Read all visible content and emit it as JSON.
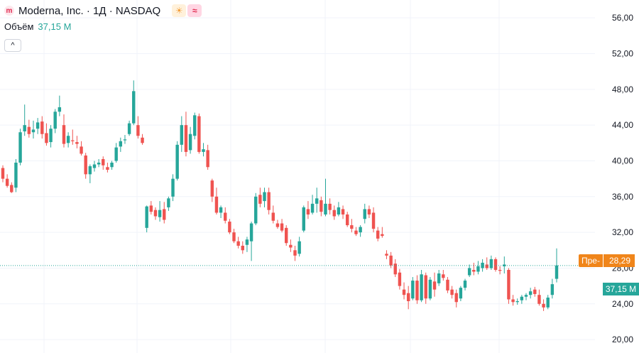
{
  "header": {
    "title": "Moderna, Inc. · 1Д · NASDAQ",
    "logo_letter": "m",
    "badges": [
      {
        "icon": "sun-icon",
        "glyph": "☀"
      },
      {
        "icon": "wave-icon",
        "glyph": "≈"
      }
    ]
  },
  "volume": {
    "label": "Объём",
    "value": "37,15 M"
  },
  "collapse_glyph": "^",
  "price_tag": {
    "prefix": "Пре-",
    "value": "28,29"
  },
  "volume_tag": {
    "value": "37,15 M"
  },
  "colors": {
    "up": "#26a69a",
    "down": "#ef5350",
    "pre": "#f0851a",
    "grid": "#f0f3fa"
  },
  "chart_data": {
    "type": "candlestick",
    "y_axis": {
      "min": 18.5,
      "max": 58,
      "ticks": [
        20,
        24,
        28,
        32,
        36,
        40,
        44,
        48,
        52,
        56
      ],
      "tick_labels": [
        "20,00",
        "24,00",
        "28,00",
        "32,00",
        "36,00",
        "40,00",
        "44,00",
        "48,00",
        "52,00",
        "56,00"
      ]
    },
    "last_price": 28.29,
    "candles": [
      [
        39.2,
        39.5,
        37.6,
        38.0
      ],
      [
        38.0,
        38.5,
        37.0,
        37.2
      ],
      [
        37.3,
        37.6,
        36.4,
        36.5
      ],
      [
        37.0,
        40.2,
        36.5,
        39.8
      ],
      [
        39.8,
        43.6,
        39.5,
        43.2
      ],
      [
        43.3,
        46.3,
        42.8,
        44.0
      ],
      [
        43.8,
        44.6,
        42.6,
        43.0
      ],
      [
        43.2,
        44.5,
        42.5,
        43.5
      ],
      [
        43.6,
        44.8,
        43.0,
        44.3
      ],
      [
        44.4,
        45.0,
        42.5,
        43.0
      ],
      [
        43.1,
        44.2,
        41.7,
        42.0
      ],
      [
        42.1,
        44.0,
        41.5,
        43.6
      ],
      [
        43.6,
        45.8,
        43.1,
        45.5
      ],
      [
        45.5,
        47.3,
        45.0,
        46.0
      ],
      [
        44.0,
        45.2,
        41.5,
        41.9
      ],
      [
        42.0,
        43.2,
        41.5,
        42.8
      ],
      [
        42.3,
        43.5,
        41.8,
        42.2
      ],
      [
        42.1,
        42.8,
        41.4,
        41.9
      ],
      [
        41.6,
        42.2,
        40.6,
        40.8
      ],
      [
        40.6,
        40.9,
        38.0,
        38.5
      ],
      [
        38.5,
        39.6,
        37.5,
        39.4
      ],
      [
        39.2,
        40.0,
        38.8,
        39.6
      ],
      [
        39.6,
        40.2,
        39.3,
        39.8
      ],
      [
        40.2,
        40.5,
        39.0,
        39.5
      ],
      [
        39.3,
        39.8,
        38.7,
        39.0
      ],
      [
        39.3,
        40.0,
        39.0,
        39.8
      ],
      [
        40.0,
        42.0,
        39.8,
        41.5
      ],
      [
        41.6,
        42.6,
        41.0,
        42.2
      ],
      [
        42.3,
        42.9,
        41.9,
        42.4
      ],
      [
        43.0,
        44.5,
        42.8,
        44.2
      ],
      [
        44.2,
        49.0,
        44.0,
        47.8
      ],
      [
        44.0,
        45.0,
        42.5,
        42.8
      ],
      [
        42.6,
        43.0,
        41.8,
        42.0
      ],
      [
        32.5,
        35.0,
        32.0,
        34.9
      ],
      [
        35.0,
        35.5,
        34.0,
        34.3
      ],
      [
        34.5,
        34.8,
        33.4,
        33.8
      ],
      [
        33.7,
        35.5,
        33.2,
        34.5
      ],
      [
        34.6,
        35.4,
        33.0,
        33.4
      ],
      [
        34.8,
        36.0,
        34.4,
        35.8
      ],
      [
        36.0,
        38.5,
        35.5,
        38.0
      ],
      [
        38.0,
        42.2,
        37.8,
        41.8
      ],
      [
        41.8,
        45.0,
        41.0,
        44.0
      ],
      [
        44.0,
        45.5,
        40.5,
        41.0
      ],
      [
        41.2,
        43.8,
        40.8,
        43.0
      ],
      [
        42.8,
        45.4,
        42.4,
        45.1
      ],
      [
        45.0,
        45.3,
        40.8,
        41.0
      ],
      [
        41.0,
        42.0,
        40.5,
        41.3
      ],
      [
        41.2,
        41.8,
        39.0,
        39.3
      ],
      [
        37.8,
        38.0,
        35.4,
        36.0
      ],
      [
        36.0,
        37.0,
        34.0,
        34.2
      ],
      [
        34.2,
        35.0,
        33.6,
        34.8
      ],
      [
        34.2,
        34.8,
        33.0,
        33.3
      ],
      [
        33.2,
        33.5,
        31.8,
        32.0
      ],
      [
        32.0,
        32.4,
        30.8,
        31.0
      ],
      [
        31.0,
        31.5,
        30.2,
        30.5
      ],
      [
        30.5,
        31.0,
        29.6,
        30.0
      ],
      [
        30.6,
        31.5,
        29.8,
        31.2
      ],
      [
        31.0,
        33.2,
        28.8,
        33.0
      ],
      [
        33.0,
        36.4,
        32.8,
        36.0
      ],
      [
        36.2,
        37.0,
        34.8,
        35.2
      ],
      [
        35.5,
        37.0,
        34.8,
        36.5
      ],
      [
        36.5,
        37.0,
        34.0,
        34.5
      ],
      [
        34.2,
        35.0,
        33.0,
        33.3
      ],
      [
        33.0,
        33.4,
        32.4,
        32.6
      ],
      [
        33.0,
        33.5,
        32.0,
        32.2
      ],
      [
        32.5,
        32.8,
        30.5,
        30.8
      ],
      [
        30.6,
        31.2,
        29.8,
        30.3
      ],
      [
        30.0,
        30.5,
        28.8,
        29.4
      ],
      [
        29.6,
        31.5,
        29.3,
        31.0
      ],
      [
        32.2,
        35.0,
        32.0,
        34.8
      ],
      [
        34.6,
        35.5,
        33.5,
        34.0
      ],
      [
        34.2,
        36.2,
        34.0,
        35.2
      ],
      [
        35.2,
        37.0,
        34.2,
        35.8
      ],
      [
        35.6,
        36.0,
        33.8,
        34.3
      ],
      [
        34.0,
        38.0,
        33.8,
        35.2
      ],
      [
        35.2,
        35.8,
        34.0,
        34.5
      ],
      [
        34.5,
        35.0,
        33.4,
        33.8
      ],
      [
        34.0,
        35.4,
        33.8,
        34.8
      ],
      [
        34.6,
        35.0,
        33.5,
        34.0
      ],
      [
        34.0,
        34.3,
        32.6,
        32.8
      ],
      [
        32.8,
        33.5,
        32.0,
        32.4
      ],
      [
        32.2,
        32.6,
        31.6,
        31.8
      ],
      [
        32.0,
        32.8,
        31.5,
        32.6
      ],
      [
        33.5,
        35.2,
        33.0,
        34.6
      ],
      [
        34.6,
        35.0,
        33.6,
        34.0
      ],
      [
        34.2,
        34.8,
        32.0,
        32.4
      ],
      [
        32.2,
        32.6,
        31.0,
        31.3
      ],
      [
        31.8,
        32.6,
        31.4,
        31.6
      ],
      [
        29.6,
        30.0,
        29.0,
        29.4
      ],
      [
        29.4,
        29.8,
        28.0,
        28.3
      ],
      [
        28.5,
        29.0,
        27.0,
        27.3
      ],
      [
        27.5,
        27.9,
        25.6,
        26.0
      ],
      [
        25.6,
        26.4,
        24.5,
        25.0
      ],
      [
        25.2,
        26.0,
        23.4,
        24.3
      ],
      [
        24.6,
        27.0,
        24.4,
        26.6
      ],
      [
        26.6,
        27.2,
        24.0,
        24.4
      ],
      [
        24.4,
        27.8,
        24.2,
        27.3
      ],
      [
        27.2,
        27.5,
        24.0,
        24.6
      ],
      [
        24.6,
        27.0,
        24.4,
        26.7
      ],
      [
        26.5,
        27.5,
        24.8,
        25.6
      ],
      [
        26.3,
        27.8,
        26.0,
        27.4
      ],
      [
        27.3,
        27.8,
        26.6,
        26.9
      ],
      [
        26.7,
        27.0,
        25.2,
        25.5
      ],
      [
        25.6,
        26.0,
        24.6,
        25.0
      ],
      [
        25.2,
        25.6,
        23.6,
        24.2
      ],
      [
        24.6,
        26.0,
        24.3,
        25.8
      ],
      [
        25.8,
        26.8,
        25.5,
        26.6
      ],
      [
        27.2,
        28.4,
        27.0,
        28.0
      ],
      [
        27.8,
        28.6,
        27.2,
        27.6
      ],
      [
        27.6,
        28.8,
        27.3,
        28.2
      ],
      [
        28.0,
        29.0,
        27.6,
        28.6
      ],
      [
        28.4,
        29.2,
        27.8,
        28.0
      ],
      [
        28.0,
        29.4,
        27.8,
        29.0
      ],
      [
        29.0,
        29.2,
        27.6,
        27.8
      ],
      [
        27.8,
        28.2,
        27.3,
        27.7
      ],
      [
        28.2,
        29.3,
        27.4,
        28.4
      ],
      [
        27.8,
        28.0,
        24.0,
        24.5
      ],
      [
        24.5,
        25.0,
        23.8,
        24.2
      ],
      [
        24.2,
        24.6,
        23.9,
        24.3
      ],
      [
        24.4,
        25.0,
        24.0,
        24.8
      ],
      [
        24.8,
        25.2,
        24.4,
        25.0
      ],
      [
        25.0,
        25.8,
        24.6,
        25.4
      ],
      [
        25.6,
        25.9,
        24.8,
        25.1
      ],
      [
        25.0,
        25.6,
        23.8,
        24.0
      ],
      [
        24.0,
        24.5,
        23.2,
        23.6
      ],
      [
        23.6,
        25.0,
        23.4,
        24.7
      ],
      [
        25.0,
        26.8,
        24.6,
        26.2
      ],
      [
        26.8,
        30.2,
        26.4,
        28.3
      ]
    ]
  }
}
